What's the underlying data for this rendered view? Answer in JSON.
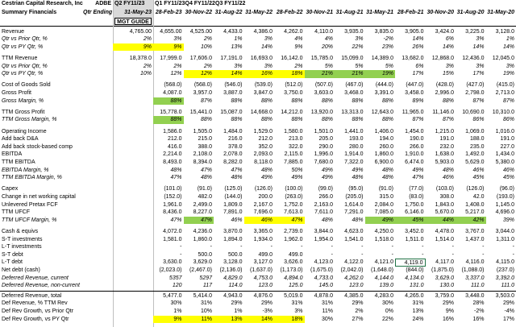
{
  "header": {
    "company": "Cestrian Capital Research, Inc",
    "subtitle": "Summary Financials",
    "ticker": "ADBE",
    "period_label": "Qtr Ending",
    "quarters": [
      "Q2 FY11/23",
      "Q1 FY11/23",
      "Q4 FY11/22",
      "Q3 FY11/22"
    ],
    "dates": [
      "31-May-23",
      "28-Feb-23",
      "30-Nov-22",
      "31-Aug-22",
      "31-May-22",
      "28-Feb-22",
      "30-Nov-21",
      "31-Aug-21",
      "31-May-21",
      "28-Feb-21",
      "30-Nov-20",
      "31-Aug-20",
      "31-May-20"
    ],
    "guide": "MGT GUIDE"
  },
  "colors": {
    "yellow": "#ffff00",
    "green": "#92d050",
    "header_fill": "#d9d9d9"
  },
  "table": {
    "rows": [
      {
        "label": "Revenue",
        "cells": [
          "4,765.00",
          "4,655.00",
          "4,525.00",
          "4,433.0",
          "4,386.0",
          "4,262.0",
          "4,110.0",
          "3,935.0",
          "3,835.0",
          "3,905.0",
          "3,424.0",
          "3,225.0",
          "3,128.0"
        ]
      },
      {
        "label": "Qtr vs Prior Qtr, %",
        "italic": true,
        "cells": [
          "2%",
          "3%",
          "2%",
          "1%",
          "3%",
          "4%",
          "4%",
          "3%",
          "-2%",
          "14%",
          "6%",
          "3%",
          "1%"
        ]
      },
      {
        "label": "Qtr vs PY Qtr, %",
        "italic": true,
        "yellow": [
          0,
          1
        ],
        "cells": [
          "9%",
          "9%",
          "10%",
          "13%",
          "14%",
          "9%",
          "20%",
          "22%",
          "23%",
          "26%",
          "14%",
          "14%",
          "14%"
        ]
      },
      {
        "label": "TTM Revenue",
        "gap_before": true,
        "cells": [
          "18,378.0",
          "17,999.0",
          "17,606.0",
          "17,191.0",
          "16,693.0",
          "16,142.0",
          "15,785.0",
          "15,099.0",
          "14,389.0",
          "13,682.0",
          "12,868.0",
          "12,436.0",
          "12,045.0"
        ]
      },
      {
        "label": "Qtr vs Prior Qtr, %",
        "italic": true,
        "cells": [
          "2%",
          "2%",
          "2%",
          "3%",
          "3%",
          "2%",
          "5%",
          "5%",
          "5%",
          "6%",
          "3%",
          "3%",
          "3%"
        ]
      },
      {
        "label": "Qtr vs PY Qtr, %",
        "italic": true,
        "yellow": [
          2,
          3,
          4,
          5
        ],
        "green": [
          6,
          7,
          8
        ],
        "cells": [
          "10%",
          "12%",
          "12%",
          "14%",
          "16%",
          "18%",
          "21%",
          "21%",
          "19%",
          "17%",
          "15%",
          "17%",
          "19%"
        ]
      },
      {
        "label": "Cost of Goods Sold",
        "gap_before": true,
        "cells": [
          null,
          "(568.0)",
          "(568.0)",
          "(546.0)",
          "(539.0)",
          "(512.0)",
          "(507.0)",
          "(467.0)",
          "(444.0)",
          "(447.0)",
          "(428.0)",
          "(427.0)",
          "(415.0)"
        ]
      },
      {
        "label": "Gross Profit",
        "cells": [
          null,
          "4,087.0",
          "3,957.0",
          "3,887.0",
          "3,847.0",
          "3,750.0",
          "3,603.0",
          "3,468.0",
          "3,391.0",
          "3,458.0",
          "2,996.0",
          "2,798.0",
          "2,713.0"
        ]
      },
      {
        "label": "Gross Margin, %",
        "italic": true,
        "green": [
          1
        ],
        "cells": [
          null,
          "88%",
          "87%",
          "88%",
          "88%",
          "88%",
          "88%",
          "88%",
          "88%",
          "89%",
          "88%",
          "87%",
          "87%"
        ]
      },
      {
        "label": "TTM Gross Profit",
        "gap_before": true,
        "cells": [
          null,
          "15,778.0",
          "15,441.0",
          "15,087.0",
          "14,668.0",
          "14,212.0",
          "13,920.0",
          "13,313.0",
          "12,643.0",
          "11,965.0",
          "11,146.0",
          "10,690.0",
          "10,310.0"
        ]
      },
      {
        "label": "TTM Gross Margin, %",
        "italic": true,
        "green": [
          1
        ],
        "cells": [
          null,
          "88%",
          "88%",
          "88%",
          "88%",
          "88%",
          "88%",
          "88%",
          "88%",
          "87%",
          "87%",
          "86%",
          "86%"
        ]
      },
      {
        "label": "Operating Income",
        "gap_before": true,
        "cells": [
          null,
          "1,586.0",
          "1,505.0",
          "1,484.0",
          "1,529.0",
          "1,580.0",
          "1,501.0",
          "1,441.0",
          "1,406.0",
          "1,454.0",
          "1,215.0",
          "1,069.0",
          "1,016.0"
        ]
      },
      {
        "label": "Add back D&A",
        "cells": [
          null,
          "212.0",
          "215.0",
          "216.0",
          "212.0",
          "213.0",
          "205.0",
          "193.0",
          "194.0",
          "190.0",
          "191.0",
          "188.0",
          "191.0"
        ]
      },
      {
        "label": "Add back stock-based comp",
        "cells": [
          null,
          "416.0",
          "388.0",
          "378.0",
          "352.0",
          "322.0",
          "290.0",
          "280.0",
          "260.0",
          "266.0",
          "232.0",
          "235.0",
          "227.0"
        ]
      },
      {
        "label": "EBITDA",
        "cells": [
          null,
          "2,214.0",
          "2,108.0",
          "2,078.0",
          "2,093.0",
          "2,115.0",
          "1,996.0",
          "1,914.0",
          "1,860.0",
          "1,910.0",
          "1,638.0",
          "1,492.0",
          "1,434.0"
        ]
      },
      {
        "label": "TTM EBITDA",
        "cells": [
          null,
          "8,493.0",
          "8,394.0",
          "8,282.0",
          "8,118.0",
          "7,885.0",
          "7,680.0",
          "7,322.0",
          "6,900.0",
          "6,474.0",
          "5,903.0",
          "5,629.0",
          "5,380.0"
        ]
      },
      {
        "label": "EBITDA Margin, %",
        "italic": true,
        "cells": [
          null,
          "48%",
          "47%",
          "47%",
          "48%",
          "50%",
          "49%",
          "49%",
          "48%",
          "49%",
          "48%",
          "46%",
          "46%"
        ]
      },
      {
        "label": "TTM EBITDA Margin, %",
        "italic": true,
        "cells": [
          null,
          "47%",
          "48%",
          "48%",
          "49%",
          "49%",
          "49%",
          "48%",
          "48%",
          "47%",
          "46%",
          "45%",
          "45%"
        ]
      },
      {
        "label": "Capex",
        "gap_before": true,
        "cells": [
          null,
          "(101.0)",
          "(91.0)",
          "(125.0)",
          "(126.0)",
          "(100.0)",
          "(99.0)",
          "(95.0)",
          "(91.0)",
          "(77.0)",
          "(103.0)",
          "(126.0)",
          "(96.0)"
        ]
      },
      {
        "label": "Change in net working capital",
        "cells": [
          null,
          "(152.0)",
          "482.0",
          "(144.0)",
          "200.0",
          "(263.0)",
          "266.0",
          "(205.0)",
          "315.0",
          "(83.0)",
          "308.0",
          "42.0",
          "(193.0)"
        ]
      },
      {
        "label": "Unlevered Pretax FCF",
        "cells": [
          null,
          "1,961.0",
          "2,499.0",
          "1,809.0",
          "2,167.0",
          "1,752.0",
          "2,163.0",
          "1,614.0",
          "2,084.0",
          "1,750.0",
          "1,843.0",
          "1,408.0",
          "1,145.0"
        ]
      },
      {
        "label": "TTM UFCF",
        "cells": [
          null,
          "8,436.0",
          "8,227.0",
          "7,891.0",
          "7,696.0",
          "7,613.0",
          "7,611.0",
          "7,291.0",
          "7,085.0",
          "6,146.0",
          "5,670.0",
          "5,217.0",
          "4,696.0"
        ]
      },
      {
        "label": "TTM UFCF Margin, %",
        "italic": true,
        "green": [
          2,
          8,
          9,
          10,
          11
        ],
        "yellow": [
          4,
          5
        ],
        "cells": [
          null,
          "47%",
          "47%",
          "46%",
          "46%",
          "47%",
          "48%",
          "48%",
          "49%",
          "45%",
          "44%",
          "42%",
          "39%"
        ]
      },
      {
        "label": "Cash & equivs",
        "gap_before": true,
        "cells": [
          null,
          "4,072.0",
          "4,236.0",
          "3,870.0",
          "3,365.0",
          "2,739.0",
          "3,844.0",
          "4,623.0",
          "4,250.0",
          "3,452.0",
          "4,478.0",
          "3,767.0",
          "3,044.0"
        ]
      },
      {
        "label": "S-T investments",
        "cells": [
          null,
          "1,581.0",
          "1,860.0",
          "1,894.0",
          "1,934.0",
          "1,962.0",
          "1,954.0",
          "1,541.0",
          "1,518.0",
          "1,511.0",
          "1,514.0",
          "1,437.0",
          "1,311.0"
        ]
      },
      {
        "label": "L-T investments",
        "cells": [
          null,
          "-",
          "-",
          "-",
          "-",
          "-",
          "-",
          "-",
          "-",
          "-",
          "-",
          "-",
          "-"
        ]
      },
      {
        "label": "S-T debt",
        "cells": [
          null,
          "-",
          "500.0",
          "500.0",
          "499.0",
          "499.0",
          "-",
          "-",
          "-",
          "-",
          "-",
          "-",
          "-"
        ]
      },
      {
        "label": "L-T debt",
        "selected": 9,
        "cells": [
          null,
          "3,630.0",
          "3,629.0",
          "3,128.0",
          "3,127.0",
          "3,626.0",
          "4,123.0",
          "4,122.0",
          "4,121.0",
          "4,119.0",
          "4,117.0",
          "4,116.0",
          "4,115.0"
        ]
      },
      {
        "label": "Net debt (cash)",
        "cells": [
          null,
          "(2,023.0)",
          "(2,467.0)",
          "(2,136.0)",
          "(1,637.0)",
          "(1,173.0)",
          "(1,675.0)",
          "(2,042.0)",
          "(1,648.0)",
          "(844.0)",
          "(1,875.0)",
          "(1,088.0)",
          "(237.0)"
        ]
      },
      {
        "label": "Deferred Revenue, current",
        "italic": true,
        "cells": [
          null,
          "5357",
          "5297",
          "4,829.0",
          "4,753.0",
          "4,894.0",
          "4,733.0",
          "4,262.0",
          "4,144.0",
          "4,134.0",
          "3,629.0",
          "3,337.0",
          "3,392.0"
        ]
      },
      {
        "label": "Deferred Revenue, non-current",
        "italic": true,
        "cells": [
          null,
          "120",
          "117",
          "114.0",
          "123.0",
          "125.0",
          "145.0",
          "123.0",
          "139.0",
          "131.0",
          "130.0",
          "111.0",
          "111.0"
        ]
      },
      {
        "label": "Deferred Revenue, total",
        "rule_before": true,
        "cells": [
          null,
          "5,477.0",
          "5,414.0",
          "4,943.0",
          "4,876.0",
          "5,019.0",
          "4,878.0",
          "4,385.0",
          "4,283.0",
          "4,265.0",
          "3,759.0",
          "3,448.0",
          "3,503.0"
        ]
      },
      {
        "label": "Def Revenue, % TTM Rev",
        "cells": [
          null,
          "30%",
          "31%",
          "29%",
          "29%",
          "31%",
          "31%",
          "29%",
          "30%",
          "31%",
          "29%",
          "28%",
          "29%"
        ]
      },
      {
        "label": "Def Rev Growth, vs Prior Qtr",
        "cells": [
          null,
          "1%",
          "10%",
          "1%",
          "-3%",
          "3%",
          "11%",
          "2%",
          "0%",
          "13%",
          "9%",
          "-2%",
          "-4%"
        ]
      },
      {
        "label": "Def Rev Growth, vs PY Qtr",
        "yellow": [
          1,
          2,
          3,
          4,
          5
        ],
        "cells": [
          null,
          "9%",
          "11%",
          "13%",
          "14%",
          "18%",
          "30%",
          "27%",
          "22%",
          "24%",
          "16%",
          "16%",
          "17%"
        ]
      }
    ]
  }
}
